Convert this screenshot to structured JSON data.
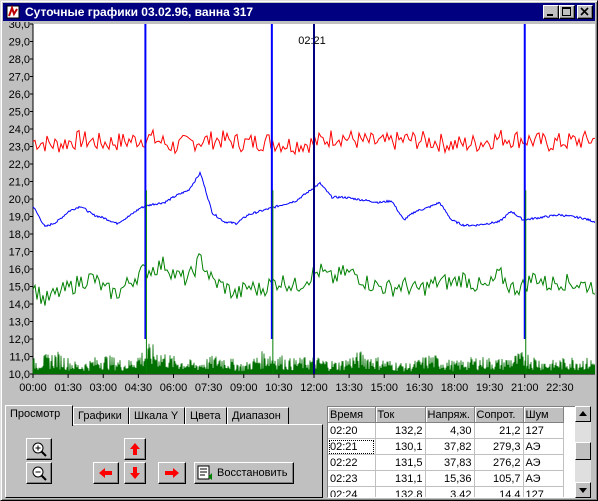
{
  "window": {
    "title": "Суточные графики 03.02.96, ванна 317",
    "controls": [
      "minimize-icon",
      "maximize-icon",
      "close-icon"
    ]
  },
  "chart_data": {
    "type": "line",
    "y_ticks": [
      "30,0",
      "29,0",
      "28,0",
      "27,0",
      "26,0",
      "25,0",
      "24,0",
      "23,0",
      "22,0",
      "21,0",
      "20,0",
      "19,0",
      "18,0",
      "17,0",
      "16,0",
      "15,0",
      "14,0",
      "13,0",
      "12,0",
      "11,0",
      "10,0"
    ],
    "x_ticks": [
      "00:00",
      "01:30",
      "03:00",
      "04:30",
      "06:00",
      "07:30",
      "09:00",
      "10:30",
      "12:00",
      "13:30",
      "15:00",
      "16:30",
      "18:00",
      "19:30",
      "21:00",
      "22:30"
    ],
    "ylim": [
      10,
      30
    ],
    "xlim_hours": [
      0,
      24
    ],
    "grid": false,
    "cursor": {
      "label": "02:21",
      "hour": 12.0
    },
    "spikes_hours": [
      4.8,
      10.2,
      21.0
    ],
    "colors": {
      "red": "#ff0000",
      "blue": "#0000ff",
      "green": "#008000",
      "dark_green": "#007000",
      "cursor": "#000080"
    },
    "series": [
      {
        "color": "red",
        "values": [
          23.3,
          23.1,
          23.4,
          23.2,
          23.3,
          23.5,
          23.0,
          23.3,
          23.4,
          23.2,
          23.3,
          23.1,
          23.2,
          23.6,
          23.3,
          23.2,
          23.4,
          23.3,
          23.1,
          23.2,
          23.5,
          23.4,
          23.2,
          23.3,
          23.4
        ]
      },
      {
        "color": "blue",
        "values": [
          19.6,
          18.4,
          18.7,
          19.3,
          19.6,
          19.1,
          18.9,
          18.6,
          19.0,
          19.5,
          19.7,
          19.8,
          20.2,
          20.5,
          21.5,
          19.2,
          18.7,
          18.6,
          19.1,
          19.3,
          19.5,
          19.7,
          19.9,
          20.4,
          20.9,
          20.1,
          20.1,
          20.0,
          19.9,
          19.8,
          19.9,
          18.8,
          19.3,
          19.5,
          19.8,
          18.8,
          18.5,
          18.5,
          18.6,
          18.7,
          19.3,
          18.8,
          18.9,
          19.0,
          19.1,
          19.0,
          18.9,
          18.7
        ]
      },
      {
        "color": "green",
        "values": [
          15.0,
          14.2,
          14.6,
          14.9,
          15.3,
          15.5,
          14.8,
          14.6,
          15.2,
          15.8,
          16.0,
          16.3,
          15.6,
          15.4,
          16.6,
          15.3,
          15.0,
          14.5,
          15.0,
          14.8,
          15.2,
          15.3,
          15.0,
          15.5,
          15.9,
          15.4,
          15.8,
          15.7,
          15.2,
          15.0,
          14.9,
          15.1,
          14.8,
          15.0,
          15.3,
          15.2,
          15.5,
          15.1,
          14.9,
          15.7,
          14.9,
          15.0,
          15.6,
          15.1,
          15.3,
          15.2,
          15.1,
          15.0
        ]
      },
      {
        "color": "dark_green",
        "values": [
          10.6,
          10.9,
          10.4,
          10.8,
          10.5,
          11.2,
          10.7,
          10.5,
          10.8,
          10.4,
          11.0,
          10.6,
          10.7,
          10.5,
          10.9,
          10.6,
          10.4,
          10.8,
          10.5,
          10.7,
          10.6,
          10.9,
          10.5,
          10.7,
          10.6
        ]
      }
    ]
  },
  "tabs": [
    {
      "label": "Просмотр",
      "active": true
    },
    {
      "label": "Графики",
      "active": false
    },
    {
      "label": "Шкала Y",
      "active": false
    },
    {
      "label": "Цвета",
      "active": false
    },
    {
      "label": "Диапазон",
      "active": false
    }
  ],
  "controls": {
    "zoom_in_icon": "magnifier-plus-icon",
    "zoom_out_icon": "magnifier-minus-icon",
    "restore_label": "Восстановить"
  },
  "table": {
    "columns": [
      "Время",
      "Ток",
      "Напряж.",
      "Сопрот.",
      "Шум"
    ],
    "rows": [
      [
        "02:20",
        "132,2",
        "4,30",
        "21,2",
        "127"
      ],
      [
        "02:21",
        "130,1",
        "37,82",
        "279,3",
        "АЭ"
      ],
      [
        "02:22",
        "131,5",
        "37,83",
        "276,2",
        "АЭ"
      ],
      [
        "02:23",
        "131,1",
        "15,36",
        "105,7",
        "АЭ"
      ],
      [
        "02:24",
        "132,8",
        "3,42",
        "14,4",
        "127"
      ]
    ],
    "selected_row": 1
  }
}
